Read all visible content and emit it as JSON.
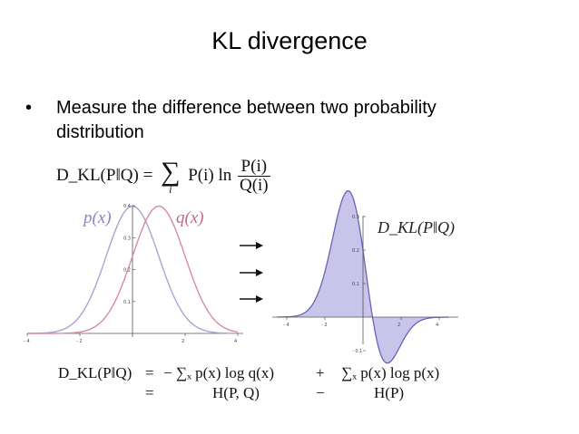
{
  "slide": {
    "title": "KL divergence",
    "bullet_symbol": "•",
    "bullet_text_line1": "Measure the difference between two probability",
    "bullet_text_line2": "distribution"
  },
  "formula_top": {
    "lhs": "D_KL(P‖Q) =",
    "sum_symbol": "∑",
    "sum_index": "i",
    "term": "P(i) ln",
    "frac_num": "P(i)",
    "frac_den": "Q(i)"
  },
  "left_plot": {
    "label_p": "p(x)",
    "label_q": "q(x)",
    "y_ticks": [
      "0.4",
      "0.3",
      "0.2",
      "0.1"
    ],
    "x_ticks": [
      "- 4",
      "- 2",
      "2",
      "4"
    ]
  },
  "right_plot": {
    "label": "D_KL(P‖Q)",
    "y_ticks": [
      "0.3",
      "0.2",
      "0.1",
      "- 0.1"
    ],
    "x_ticks": [
      "- 4",
      "- 2",
      "2",
      "4"
    ]
  },
  "arrows": {
    "count": 3
  },
  "formula_bottom": {
    "row1_lhs": "D_KL(P‖Q)",
    "row1_eq": "=",
    "row1_t1": "− ∑ₓ p(x) log q(x)",
    "row1_op": "+",
    "row1_t2": "∑ₓ p(x) log p(x)",
    "row2_eq": "=",
    "row2_t1": "H(P, Q)",
    "row2_op": "−",
    "row2_t2": "H(P)"
  },
  "colors": {
    "p_curve": "#a9a4d4",
    "q_curve": "#d98aa3",
    "kl_fill": "#c9c5ea",
    "kl_stroke": "#6a63b5",
    "axis": "#555555"
  }
}
